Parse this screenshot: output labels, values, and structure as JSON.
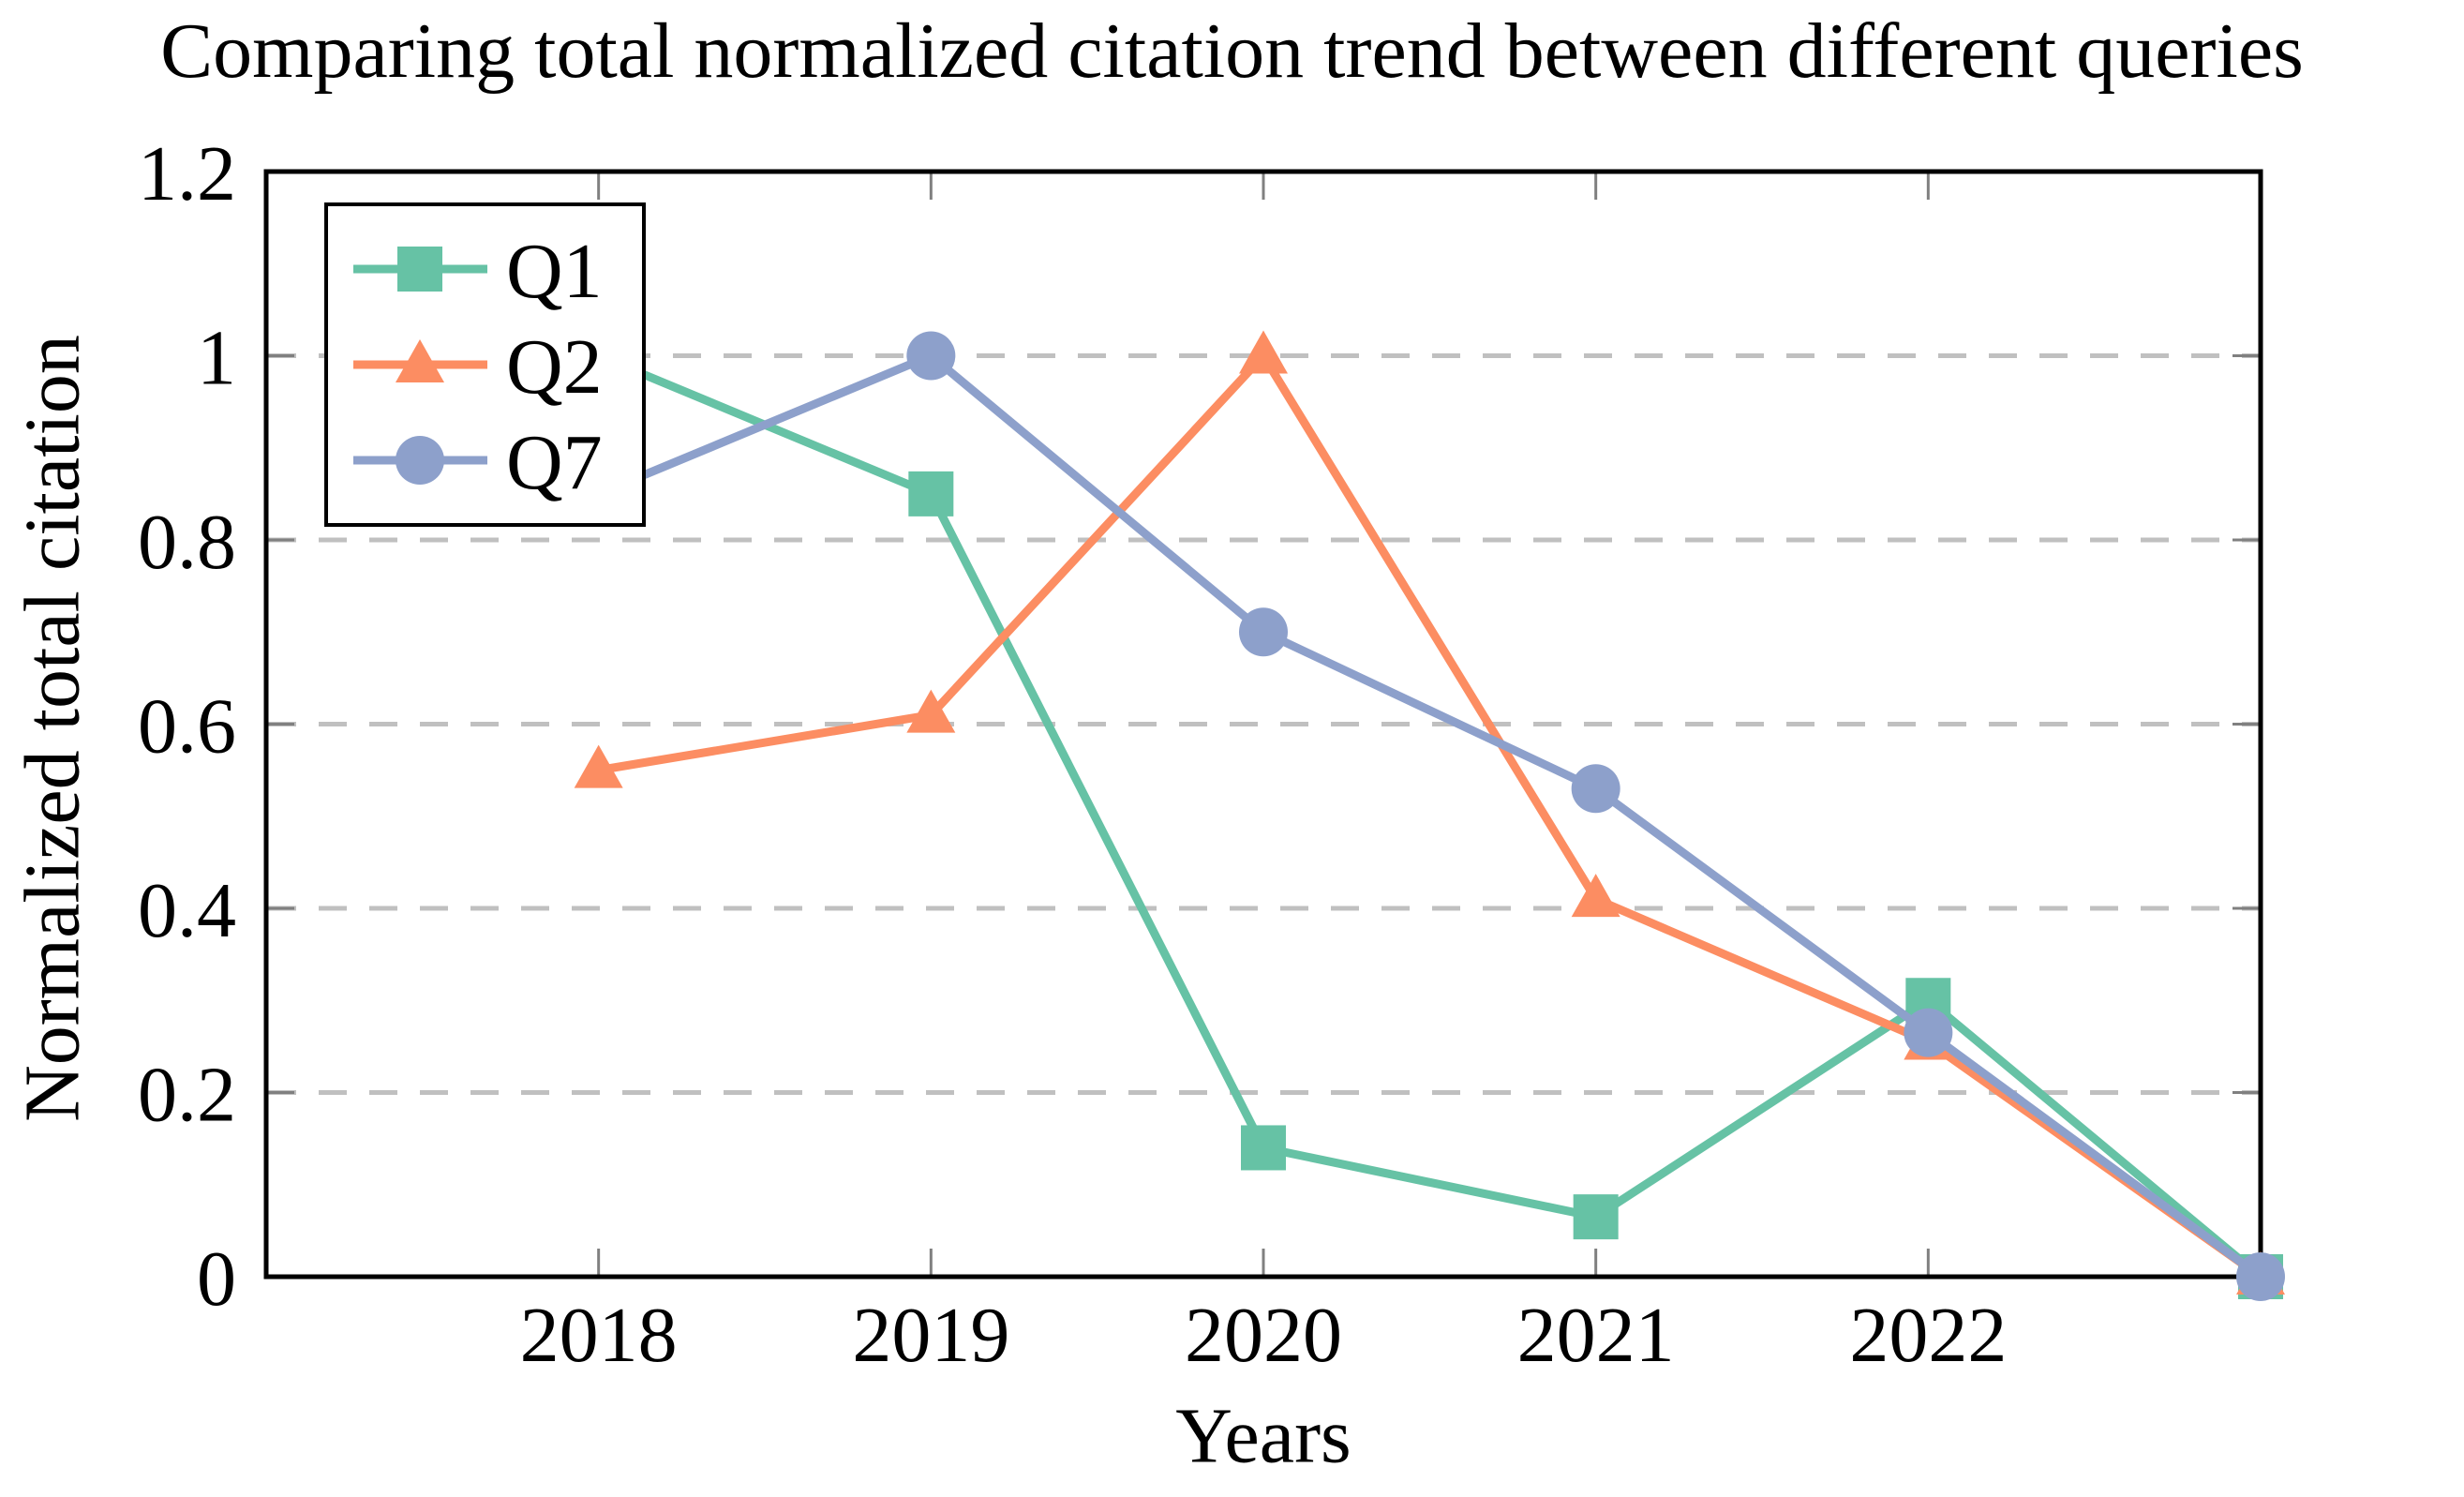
{
  "chart_data": {
    "type": "line",
    "title": "Comparing total normalized citation trend between different queries",
    "xlabel": "Years",
    "ylabel": "Normalized total citation",
    "x": [
      2018,
      2019,
      2020,
      2021,
      2022,
      2023
    ],
    "xtick_values": [
      2018,
      2019,
      2020,
      2021,
      2022
    ],
    "xtick_labels": [
      "2018",
      "2019",
      "2020",
      "2021",
      "2022"
    ],
    "ytick_values": [
      0,
      0.2,
      0.4,
      0.6,
      0.8,
      1,
      1.2
    ],
    "ytick_labels": [
      "0",
      "0.2",
      "0.4",
      "0.6",
      "0.8",
      "1",
      "1.2"
    ],
    "xlim": [
      2017,
      2023
    ],
    "ylim": [
      0,
      1.2
    ],
    "grid": "horizontal dashed gridlines at 0.2, 0.4, 0.6, 0.8, 1.0",
    "gridline_values": [
      0.2,
      0.4,
      0.6,
      0.8,
      1.0
    ],
    "legend_position": "top-left inside plot",
    "series": [
      {
        "name": "Q1",
        "marker": "square",
        "color": "#66C2A5",
        "values": [
          1.0,
          0.85,
          0.14,
          0.065,
          0.3,
          0.0
        ]
      },
      {
        "name": "Q2",
        "marker": "triangle",
        "color": "#FC8D62",
        "values": [
          0.55,
          0.61,
          1.0,
          0.41,
          0.255,
          0.0
        ]
      },
      {
        "name": "Q7",
        "marker": "circle",
        "color": "#8DA0CB",
        "values": [
          0.85,
          1.0,
          0.7,
          0.53,
          0.265,
          0.0
        ]
      }
    ],
    "colors": {
      "axis": "#000000",
      "grid": "#c0c0c0",
      "tick": "#808080",
      "legend_background": "#ffffff",
      "legend_border": "#000000",
      "text": "#000000"
    }
  }
}
